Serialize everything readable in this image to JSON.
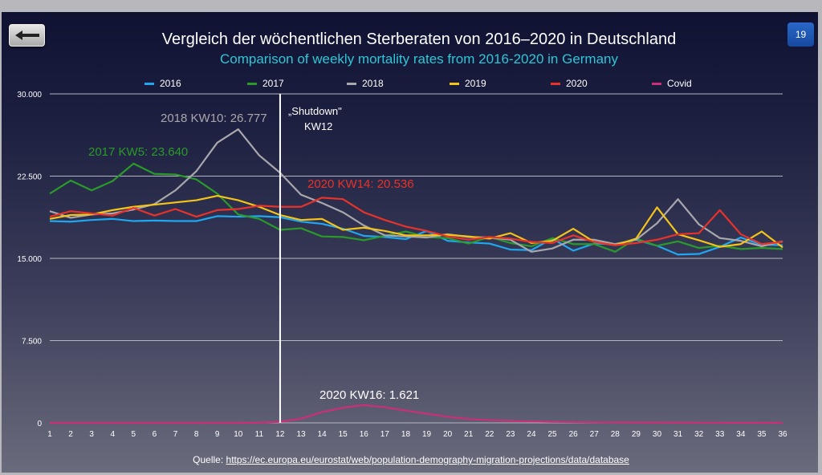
{
  "page": {
    "number": "19",
    "back_label": "back"
  },
  "source": {
    "label": "Quelle:",
    "url": "https://ec.europa.eu/eurostat/web/population-demography-migration-projections/data/database"
  },
  "chart_data": {
    "type": "line",
    "title": "Vergleich der wöchentlichen Sterberaten von 2016–2020 in Deutschland",
    "subtitle": "Comparison of weekly mortality rates from 2016-2020 in Germany",
    "xlabel": "",
    "ylabel": "",
    "x": [
      1,
      2,
      3,
      4,
      5,
      6,
      7,
      8,
      9,
      10,
      11,
      12,
      13,
      14,
      15,
      16,
      17,
      18,
      19,
      20,
      21,
      22,
      23,
      24,
      25,
      26,
      27,
      28,
      29,
      30,
      31,
      32,
      33,
      34,
      35,
      36
    ],
    "ylim": [
      0,
      30000
    ],
    "yticks": [
      0,
      7500,
      15000,
      22500,
      30000
    ],
    "ytick_labels": [
      "0",
      "7.500",
      "15.000",
      "22.500",
      "30.000"
    ],
    "grid": true,
    "legend_position": "top",
    "series": [
      {
        "name": "2016",
        "color": "#1fa8f0",
        "values": [
          18400,
          18350,
          18500,
          18600,
          18400,
          18450,
          18400,
          18400,
          18850,
          18800,
          18850,
          18750,
          18350,
          18150,
          17700,
          17050,
          16950,
          16750,
          17500,
          16600,
          16450,
          16350,
          15800,
          15750,
          16800,
          15700,
          16350,
          16300,
          16700,
          16150,
          15350,
          15400,
          16050,
          16900,
          16250,
          16200
        ]
      },
      {
        "name": "2017",
        "color": "#2a9a2a",
        "values": [
          20900,
          22100,
          21200,
          22050,
          23640,
          22700,
          22650,
          22200,
          20900,
          19000,
          18600,
          17600,
          17750,
          17000,
          16950,
          16650,
          17050,
          17450,
          16950,
          16850,
          16350,
          16950,
          16400,
          16100,
          16850,
          16300,
          16300,
          15600,
          16800,
          16150,
          16550,
          15950,
          16150,
          15850,
          15950,
          15850
        ]
      },
      {
        "name": "2018",
        "color": "#a8a8ac",
        "values": [
          19300,
          18700,
          19000,
          19100,
          19450,
          19950,
          21200,
          22950,
          25550,
          26777,
          24400,
          22800,
          20800,
          20050,
          19200,
          18000,
          17100,
          17000,
          16900,
          17200,
          16950,
          16900,
          16700,
          15600,
          15900,
          16700,
          16700,
          16300,
          16700,
          18200,
          20400,
          18100,
          16850,
          16600,
          16100,
          16550
        ]
      },
      {
        "name": "2019",
        "color": "#f4c418",
        "values": [
          18600,
          18950,
          19000,
          19400,
          19700,
          19900,
          20100,
          20300,
          20700,
          20300,
          19700,
          18950,
          18500,
          18600,
          17600,
          17800,
          17500,
          17100,
          17100,
          17150,
          17000,
          16800,
          17300,
          16400,
          16600,
          17700,
          16500,
          16200,
          16800,
          19650,
          17200,
          16650,
          16050,
          16300,
          17450,
          16000
        ]
      },
      {
        "name": "2020",
        "color": "#e8322a",
        "values": [
          18800,
          19300,
          19100,
          18900,
          19600,
          18900,
          19500,
          18800,
          19400,
          19500,
          19800,
          19700,
          19700,
          20536,
          20400,
          19200,
          18500,
          17900,
          17500,
          17000,
          16700,
          16950,
          16800,
          16500,
          16400,
          17100,
          16500,
          16200,
          16400,
          16700,
          17200,
          17300,
          19400,
          17200,
          16300,
          16500
        ]
      },
      {
        "name": "Covid",
        "color": "#cc2f78",
        "values": [
          0,
          0,
          0,
          0,
          0,
          0,
          0,
          0,
          0,
          0,
          20,
          100,
          380,
          980,
          1380,
          1621,
          1420,
          1120,
          840,
          560,
          350,
          250,
          180,
          130,
          90,
          70,
          50,
          40,
          30,
          25,
          20,
          15,
          12,
          10,
          8,
          6
        ]
      }
    ],
    "annotations": [
      {
        "text": "2018 KW10: 26.777",
        "series": "2018",
        "x": 10,
        "color": "#a8a8ac"
      },
      {
        "text": "2017 KW5: 23.640",
        "series": "2017",
        "x": 5,
        "color": "#2a9a2a"
      },
      {
        "text": "2020 KW14: 20.536",
        "series": "2020",
        "x": 14,
        "color": "#e8322a"
      },
      {
        "text": "2020 KW16: 1.621",
        "series": "Covid",
        "x": 16,
        "color": "#ffffff"
      }
    ],
    "vline": {
      "x": 12,
      "label_line1": "„Shutdown\"",
      "label_line2": "KW12"
    }
  }
}
